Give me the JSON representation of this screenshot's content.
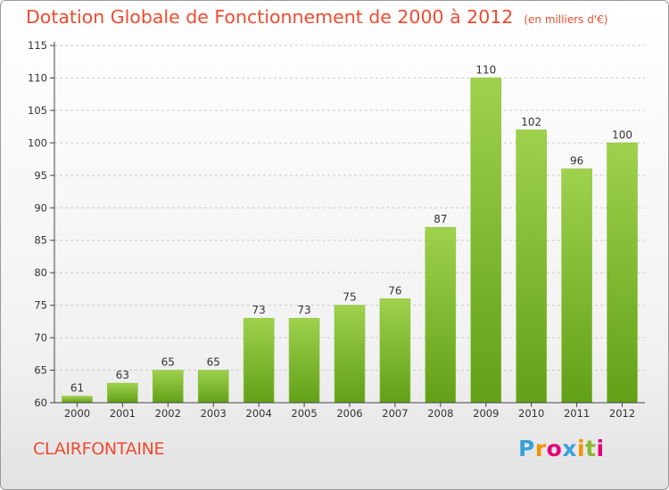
{
  "header": {
    "title": "Dotation Globale de Fonctionnement de 2000 à 2012",
    "subtitle": "(en milliers d'€)"
  },
  "commune": "CLAIRFONTAINE",
  "logo": {
    "text": "Proxiti",
    "letter_colors": [
      "#3aa0d8",
      "#f39200",
      "#e2007a",
      "#3aa0d8",
      "#f39200",
      "#8ab833",
      "#e2007a"
    ]
  },
  "colors": {
    "bar_top": "#9fd14d",
    "bar_bottom": "#62a018",
    "title": "#ef4b2f",
    "grid": "#cccccc"
  },
  "chart_data": {
    "type": "bar",
    "title": "Dotation Globale de Fonctionnement de 2000 à 2012",
    "subtitle": "(en milliers d'€)",
    "categories": [
      "2000",
      "2001",
      "2002",
      "2003",
      "2004",
      "2005",
      "2006",
      "2007",
      "2008",
      "2009",
      "2010",
      "2011",
      "2012"
    ],
    "values": [
      61,
      63,
      65,
      65,
      73,
      73,
      75,
      76,
      87,
      110,
      102,
      96,
      100
    ],
    "ylim": [
      60,
      115
    ],
    "yticks": [
      60,
      65,
      70,
      75,
      80,
      85,
      90,
      95,
      100,
      105,
      110,
      115
    ],
    "grid": true,
    "xlabel": "",
    "ylabel": ""
  }
}
